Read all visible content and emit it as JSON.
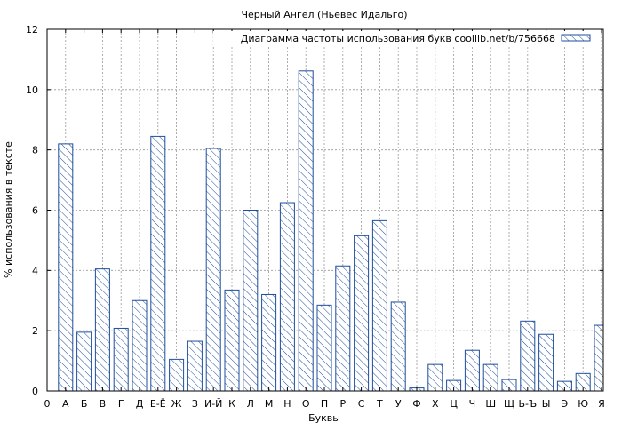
{
  "chart_data": {
    "type": "bar",
    "title": "Черный Ангел (Ньевес Идальго)",
    "xlabel": "Буквы",
    "ylabel": "% использования в тексте",
    "legend": {
      "label": "Диаграмма частоты использования букв coollib.net/b/756668",
      "position": "top-right"
    },
    "ylim": [
      0,
      12
    ],
    "yticks": [
      0,
      2,
      4,
      6,
      8,
      10,
      12
    ],
    "x_zero_label": "0",
    "grid": true,
    "categories": [
      "А",
      "Б",
      "В",
      "Г",
      "Д",
      "Е-Ё",
      "Ж",
      "З",
      "И-Й",
      "К",
      "Л",
      "М",
      "Н",
      "О",
      "П",
      "Р",
      "С",
      "Т",
      "У",
      "Ф",
      "Х",
      "Ц",
      "Ч",
      "Ш",
      "Щ",
      "Ь-Ъ",
      "Ы",
      "Э",
      "Ю",
      "Я"
    ],
    "values": [
      8.2,
      1.95,
      4.05,
      2.08,
      3.0,
      8.45,
      1.05,
      1.65,
      8.05,
      3.35,
      6.0,
      3.2,
      6.25,
      10.62,
      2.85,
      4.15,
      5.15,
      5.65,
      2.95,
      0.1,
      0.88,
      0.35,
      1.35,
      0.88,
      0.38,
      2.32,
      1.88,
      0.32,
      0.58,
      2.18
    ],
    "colors": {
      "bar_stroke": "#1f4e9c",
      "hatch": "#1f4e9c",
      "grid": "#999999",
      "axis": "#000000"
    }
  }
}
